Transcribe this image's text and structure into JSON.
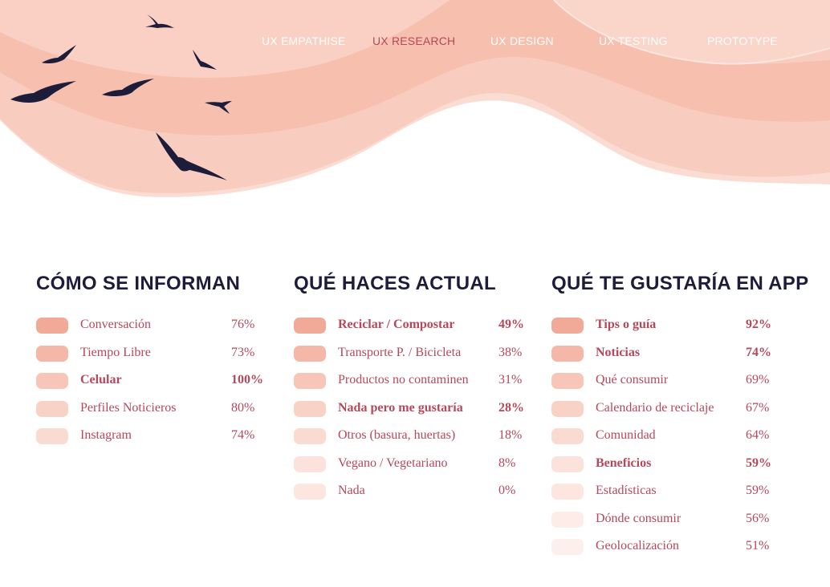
{
  "nav": [
    {
      "label": "UX EMPATHISE",
      "active": false
    },
    {
      "label": "UX RESEARCH",
      "active": true
    },
    {
      "label": "UX DESIGN",
      "active": false
    },
    {
      "label": "UX TESTING",
      "active": false
    },
    {
      "label": "PROTOTYPE",
      "active": false
    }
  ],
  "colors": {
    "title": "#1d1d3b",
    "text": "#b5485a",
    "wave_light": "#fad3c7",
    "wave_mid": "#f7c3b3",
    "wave_dark": "#f4b8a6",
    "birds": "#1d1d3b",
    "swatches": [
      "#f2aa98",
      "#f5b8a8",
      "#f7c6b8",
      "#f9d2c6",
      "#fadbd2",
      "#fbe2da",
      "#fce6df",
      "#fdece7",
      "#fdf0ec"
    ]
  },
  "columns": [
    {
      "title": "CÓMO SE INFORMAN",
      "rows": [
        {
          "label": "Conversación",
          "value": "76%",
          "bold": false
        },
        {
          "label": "Tiempo Libre",
          "value": "73%",
          "bold": false
        },
        {
          "label": "Celular",
          "value": "100%",
          "bold": true
        },
        {
          "label": "Perfiles Noticieros",
          "value": "80%",
          "bold": false
        },
        {
          "label": "Instagram",
          "value": "74%",
          "bold": false
        }
      ]
    },
    {
      "title": "QUÉ HACES ACTUAL",
      "rows": [
        {
          "label": "Reciclar / Compostar",
          "value": "49%",
          "bold": true
        },
        {
          "label": "Transporte P. / Bicicleta",
          "value": "38%",
          "bold": false
        },
        {
          "label": "Productos no contaminen",
          "value": "31%",
          "bold": false
        },
        {
          "label": "Nada pero me gustaría",
          "value": "28%",
          "bold": true
        },
        {
          "label": "Otros (basura, huertas)",
          "value": "18%",
          "bold": false
        },
        {
          "label": "Vegano / Vegetariano",
          "value": "8%",
          "bold": false
        },
        {
          "label": "Nada",
          "value": "0%",
          "bold": false
        }
      ]
    },
    {
      "title": "QUÉ TE GUSTARÍA EN APP",
      "rows": [
        {
          "label": "Tips o guía",
          "value": "92%",
          "bold": true
        },
        {
          "label": "Noticias",
          "value": "74%",
          "bold": true
        },
        {
          "label": "Qué consumir",
          "value": "69%",
          "bold": false
        },
        {
          "label": "Calendario de reciclaje",
          "value": "67%",
          "bold": false
        },
        {
          "label": "Comunidad",
          "value": "64%",
          "bold": false
        },
        {
          "label": "Beneficios",
          "value": "59%",
          "bold": true
        },
        {
          "label": "Estadísticas",
          "value": "59%",
          "bold": false
        },
        {
          "label": "Dónde consumir",
          "value": "56%",
          "bold": false
        },
        {
          "label": "Geolocalización",
          "value": "51%",
          "bold": false
        }
      ]
    }
  ]
}
